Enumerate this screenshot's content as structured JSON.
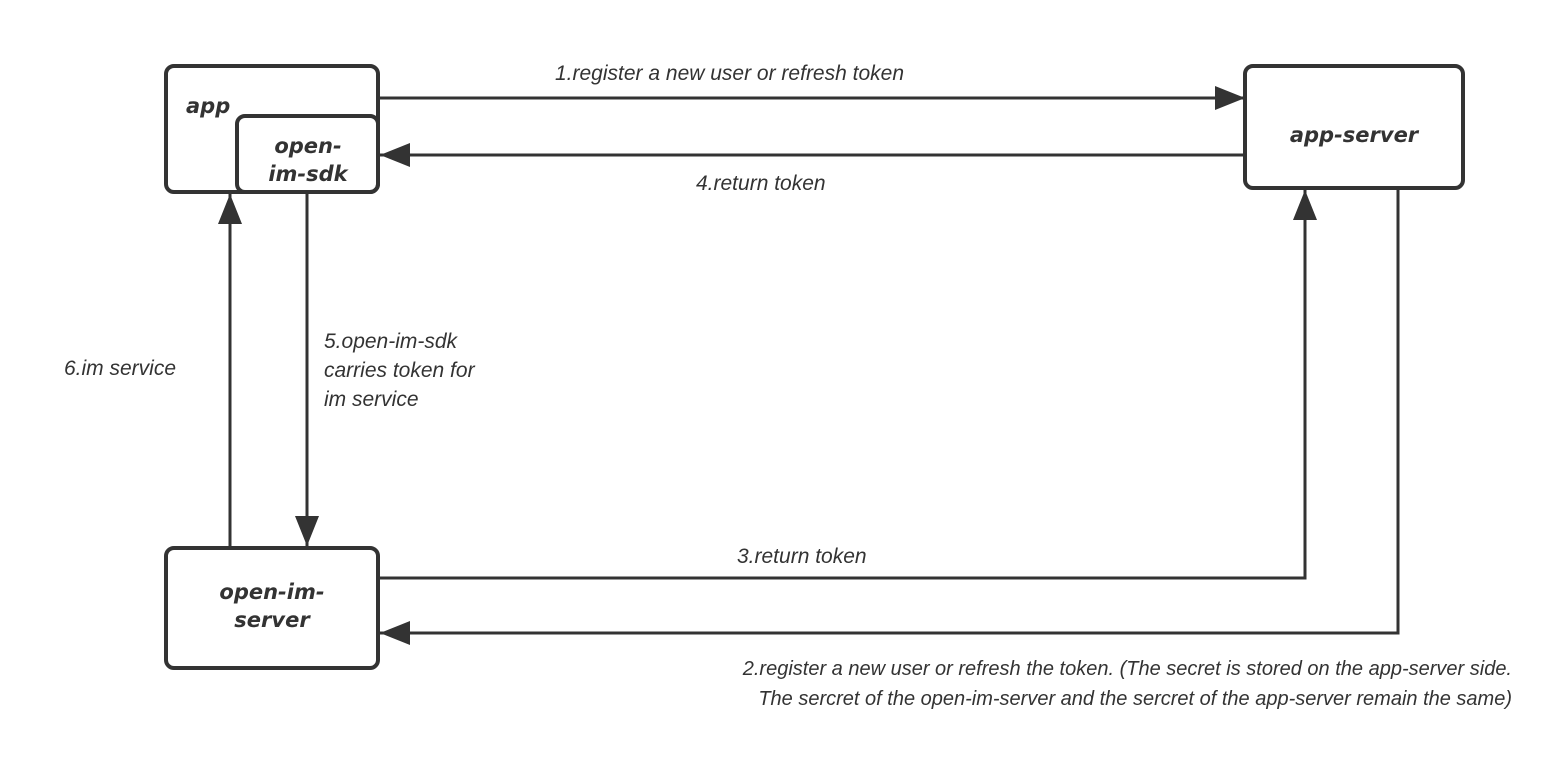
{
  "nodes": {
    "app": "app",
    "sdk_line1": "open-",
    "sdk_line2": "im-sdk",
    "app_server": "app-server",
    "im_server_line1": "open-im-",
    "im_server_line2": "server"
  },
  "edges": {
    "e1": "1.register a new user or refresh token",
    "e2_line1": "2.register a new user or refresh the token. (The secret is stored on the app-server side.",
    "e2_line2": "The sercret of the open-im-server and the sercret of the app-server remain the same)",
    "e3": "3.return token",
    "e4": "4.return token",
    "e5_line1": "5.open-im-sdk",
    "e5_line2": "carries token for",
    "e5_line3": "im service",
    "e6": "6.im service"
  },
  "colors": {
    "stroke": "#333333",
    "background": "#ffffff"
  }
}
